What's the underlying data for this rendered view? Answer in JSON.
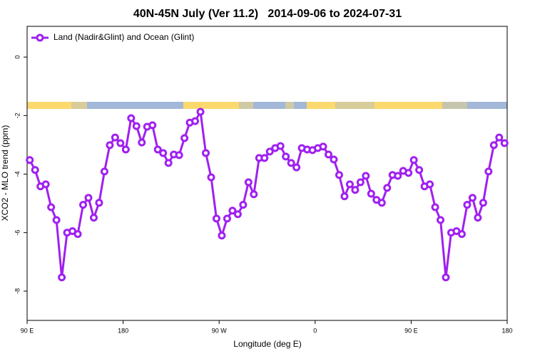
{
  "chart_data": {
    "type": "line",
    "title": "40N-45N July (Ver 11.2)   2014-09-06 to 2024-07-31",
    "x_label": "Longitude (deg E)",
    "y_label": "XCO2 - MLO trend (ppm)",
    "x": [
      92.5,
      97.5,
      102.5,
      107.5,
      112.5,
      117.5,
      122.5,
      127.5,
      132.5,
      137.5,
      142.5,
      147.5,
      152.5,
      157.5,
      162.5,
      167.5,
      172.5,
      177.5,
      182.5,
      187.5,
      192.5,
      197.5,
      202.5,
      207.5,
      212.5,
      217.5,
      222.5,
      227.5,
      232.5,
      237.5,
      242.5,
      247.5,
      252.5,
      257.5,
      262.5,
      267.5,
      272.5,
      277.5,
      282.5,
      287.5,
      292.5,
      297.5,
      302.5,
      307.5,
      312.5,
      317.5,
      322.5,
      327.5,
      332.5,
      337.5,
      342.5,
      347.5,
      352.5,
      357.5,
      362.5,
      367.5,
      372.5,
      377.5,
      382.5,
      387.5,
      392.5,
      397.5,
      402.5,
      407.5,
      412.5,
      417.5,
      422.5,
      427.5,
      432.5,
      437.5,
      442.5,
      447.5,
      452.5,
      457.5,
      462.5,
      467.5,
      472.5,
      477.5,
      482.5,
      487.5,
      492.5,
      497.5,
      502.5,
      507.5,
      512.5,
      517.5,
      522.5,
      527.5,
      532.5,
      537.5
    ],
    "series": [
      {
        "name": "Land (Nadir&Glint) and Ocean (Glint)",
        "color": "#a020f0",
        "values": [
          -3.52,
          -3.86,
          -4.42,
          -4.35,
          -5.13,
          -5.57,
          -7.53,
          -6.0,
          -5.95,
          -6.05,
          -5.05,
          -4.81,
          -5.49,
          -4.98,
          -3.91,
          -3.01,
          -2.75,
          -2.94,
          -3.16,
          -2.09,
          -2.36,
          -2.92,
          -2.38,
          -2.33,
          -3.16,
          -3.28,
          -3.62,
          -3.33,
          -3.35,
          -2.77,
          -2.24,
          -2.19,
          -1.87,
          -3.28,
          -4.11,
          -5.52,
          -6.1,
          -5.52,
          -5.25,
          -5.37,
          -5.05,
          -4.28,
          -4.69,
          -3.45,
          -3.45,
          -3.23,
          -3.11,
          -3.04,
          -3.4,
          -3.62,
          -3.77,
          -3.11,
          -3.16,
          -3.18,
          -3.11,
          -3.06,
          -3.33,
          -3.5,
          -4.03,
          -4.76,
          -4.35,
          -4.54,
          -4.28,
          -4.06,
          -4.67,
          -4.88,
          -4.98,
          -4.47,
          -4.03,
          -4.06,
          -3.89,
          -3.96,
          -3.52,
          -3.86,
          -4.42,
          -4.35,
          -5.13,
          -5.57,
          -7.53,
          -6.0,
          -5.95,
          -6.05,
          -5.05,
          -4.81,
          -5.49,
          -4.98,
          -3.91,
          -3.01,
          -2.75,
          -2.94
        ]
      }
    ],
    "xlim": [
      90,
      540
    ],
    "xticks": [
      {
        "value": 90,
        "label": "90 E"
      },
      {
        "value": 180,
        "label": "180"
      },
      {
        "value": 270,
        "label": "90 W"
      },
      {
        "value": 360,
        "label": "0"
      },
      {
        "value": 450,
        "label": "90 E"
      },
      {
        "value": 540,
        "label": "180"
      }
    ],
    "ylim": [
      -9,
      1.05
    ],
    "yticks": [
      0,
      -2,
      -4,
      -6,
      -8
    ],
    "legend": "top-left"
  }
}
